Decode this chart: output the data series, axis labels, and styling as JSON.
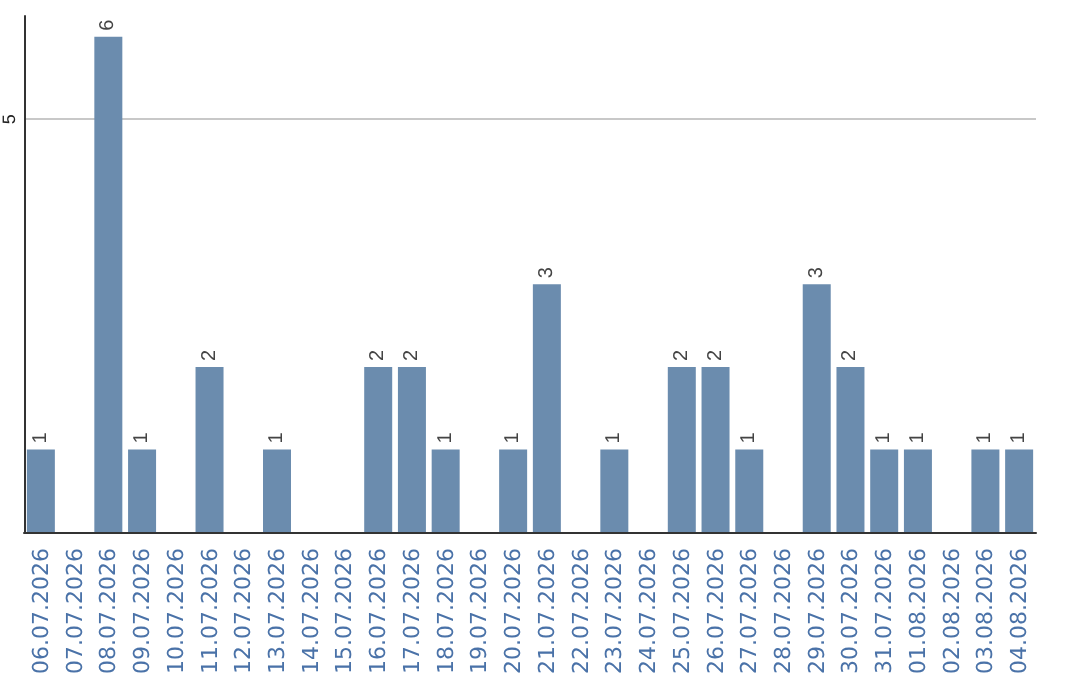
{
  "chart_data": {
    "type": "bar",
    "categories": [
      "06.07.2026",
      "07.07.2026",
      "08.07.2026",
      "09.07.2026",
      "10.07.2026",
      "11.07.2026",
      "12.07.2026",
      "13.07.2026",
      "14.07.2026",
      "15.07.2026",
      "16.07.2026",
      "17.07.2026",
      "18.07.2026",
      "19.07.2026",
      "20.07.2026",
      "21.07.2026",
      "22.07.2026",
      "23.07.2026",
      "24.07.2026",
      "25.07.2026",
      "26.07.2026",
      "27.07.2026",
      "28.07.2026",
      "29.07.2026",
      "30.07.2026",
      "31.07.2026",
      "01.08.2026",
      "02.08.2026",
      "03.08.2026",
      "04.08.2026"
    ],
    "values": [
      1,
      null,
      6,
      1,
      null,
      2,
      null,
      1,
      null,
      null,
      2,
      2,
      1,
      null,
      1,
      3,
      null,
      1,
      null,
      2,
      2,
      1,
      null,
      3,
      2,
      1,
      1,
      null,
      1,
      1
    ],
    "color": "#6b8cae",
    "ylim": [
      0,
      6.25
    ],
    "yticks": [
      5
    ],
    "grid": "y",
    "data_labels": true
  }
}
